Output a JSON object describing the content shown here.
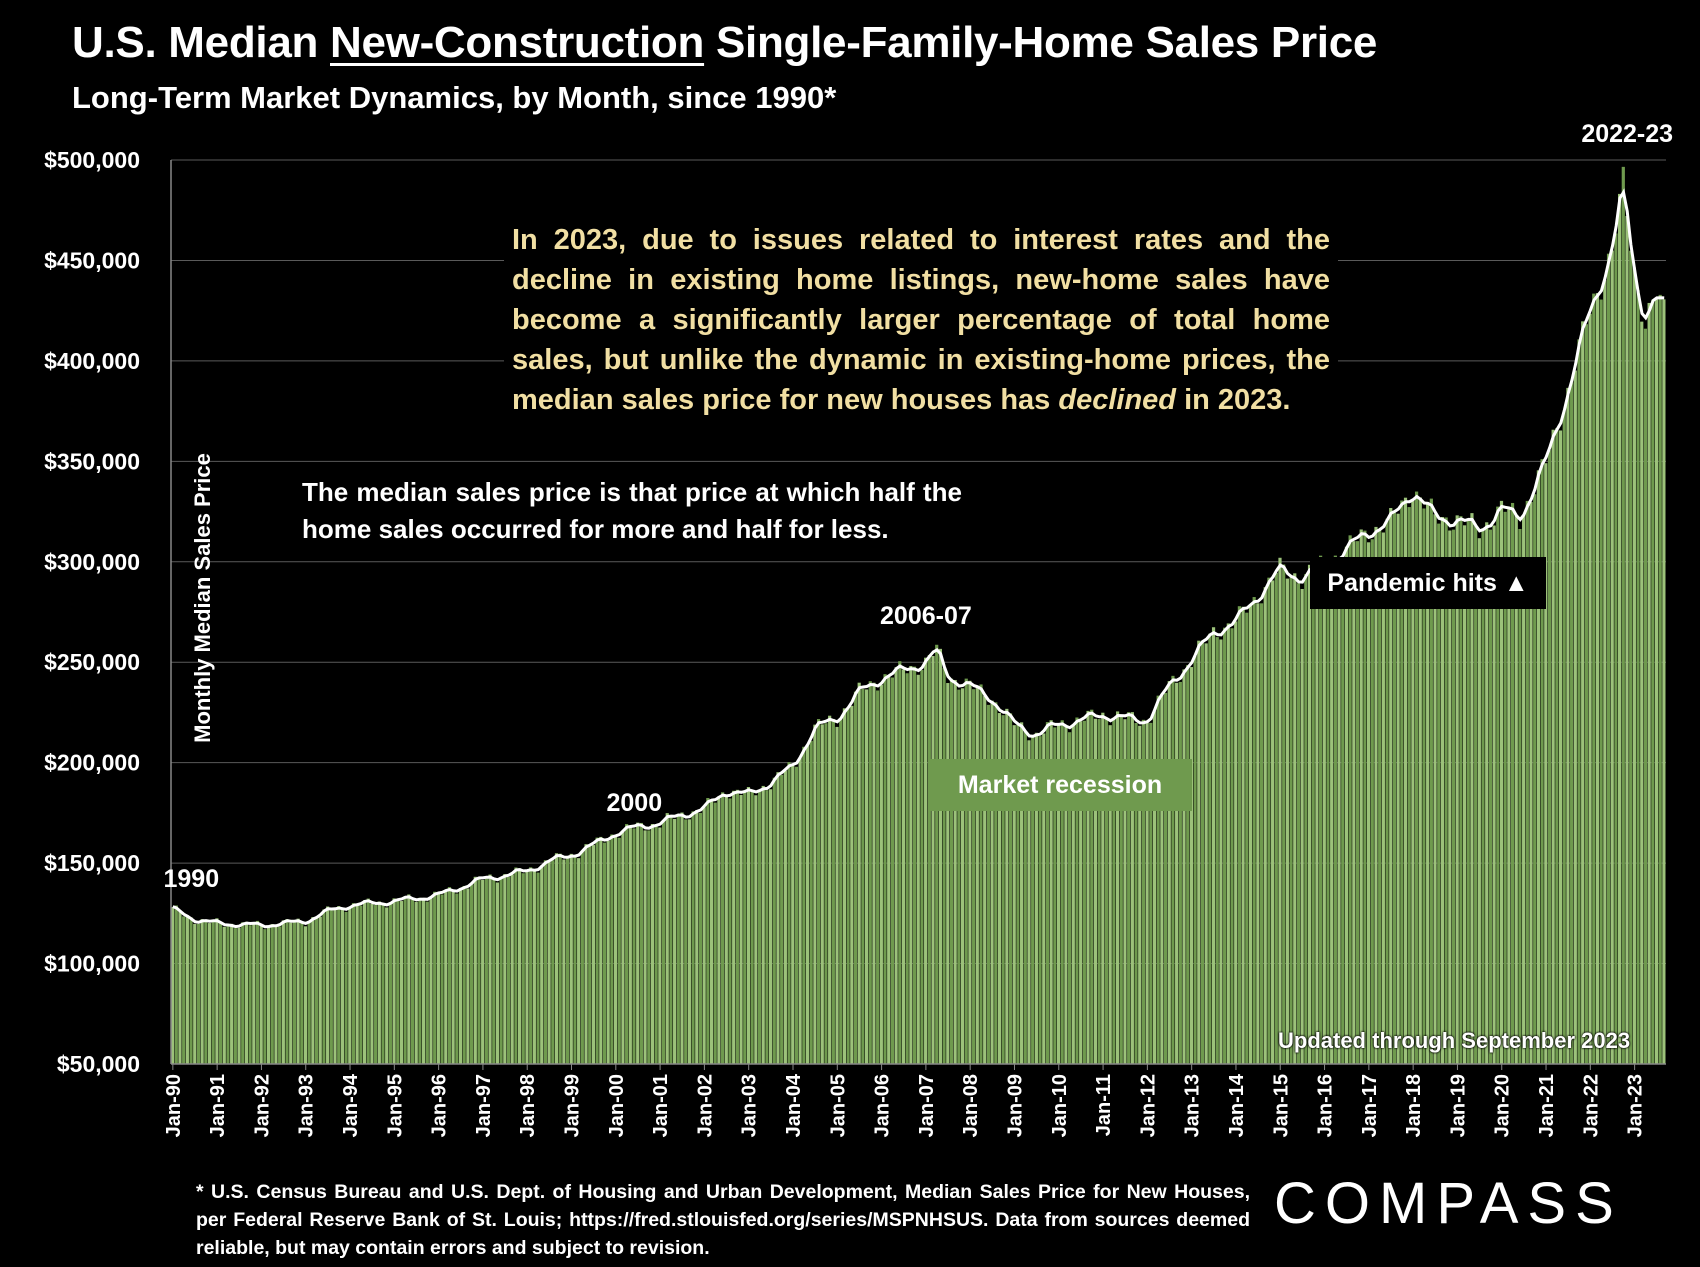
{
  "title": {
    "prefix": "U.S. Median ",
    "underlined": "New-Construction",
    "suffix": " Single-Family-Home Sales Price"
  },
  "subtitle": "Long-Term Market Dynamics, by Month, since 1990*",
  "note_yellow_1": "In 2023, due to issues related to interest rates and the decline in existing home listings, new-home sales have become a significantly larger percentage of total home sales, but unlike the dynamic in existing-home prices, the median sales price for new houses has ",
  "note_yellow_em": "declined",
  "note_yellow_2": " in 2023.",
  "note_white": "The median sales price is that price at which half the home sales occurred for more and half for less.",
  "badges": {
    "pandemic": "Pandemic hits ▲",
    "recession": "Market recession"
  },
  "updated": "Updated through September 2023",
  "footnote": "* U.S. Census Bureau and U.S. Dept. of Housing and Urban Development, Median Sales Price for New Houses, per Federal Reserve Bank of St. Louis; https://fred.stlouisfed.org/series/MSPNHSUS. Data from sources deemed reliable, but may contain errors and subject to revision.",
  "logo": "COMPASS",
  "colors": {
    "bar": "#6f9a4e",
    "bar_light": "#9cc27a",
    "line": "#ffffff",
    "note_yellow": "#f1dfa3",
    "grid": "#5a5a5a"
  },
  "chart_data": {
    "type": "bar",
    "title": "U.S. Median New-Construction Single-Family-Home Sales Price",
    "ylabel": "Monthly Median Sales Price",
    "xlabel": "",
    "ylim": [
      50000,
      500000
    ],
    "yticks": [
      50000,
      100000,
      150000,
      200000,
      250000,
      300000,
      350000,
      400000,
      450000,
      500000
    ],
    "ytick_labels": [
      "$50,000",
      "$100,000",
      "$150,000",
      "$200,000",
      "$250,000",
      "$300,000",
      "$350,000",
      "$400,000",
      "$450,000",
      "$500,000"
    ],
    "xtick_labels": [
      "Jan-90",
      "Jan-91",
      "Jan-92",
      "Jan-93",
      "Jan-94",
      "Jan-95",
      "Jan-96",
      "Jan-97",
      "Jan-98",
      "Jan-99",
      "Jan-00",
      "Jan-01",
      "Jan-02",
      "Jan-03",
      "Jan-04",
      "Jan-05",
      "Jan-06",
      "Jan-07",
      "Jan-08",
      "Jan-09",
      "Jan-10",
      "Jan-11",
      "Jan-12",
      "Jan-13",
      "Jan-14",
      "Jan-15",
      "Jan-16",
      "Jan-17",
      "Jan-18",
      "Jan-19",
      "Jan-20",
      "Jan-21",
      "Jan-22",
      "Jan-23"
    ],
    "start": "1990-01",
    "end": "2023-09",
    "anchors": [
      [
        "1990-01",
        127000
      ],
      [
        "1990-07",
        122000
      ],
      [
        "1991-01",
        120000
      ],
      [
        "1992-01",
        119000
      ],
      [
        "1993-01",
        121000
      ],
      [
        "1993-07",
        126000
      ],
      [
        "1994-01",
        129000
      ],
      [
        "1995-01",
        131000
      ],
      [
        "1996-01",
        134000
      ],
      [
        "1997-01",
        142000
      ],
      [
        "1998-01",
        146000
      ],
      [
        "1998-07",
        151000
      ],
      [
        "1999-01",
        154000
      ],
      [
        "1999-07",
        159000
      ],
      [
        "2000-01",
        165000
      ],
      [
        "2000-07",
        168000
      ],
      [
        "2001-01",
        170000
      ],
      [
        "2001-07",
        174000
      ],
      [
        "2002-01",
        177000
      ],
      [
        "2002-07",
        186000
      ],
      [
        "2003-01",
        184000
      ],
      [
        "2003-07",
        190000
      ],
      [
        "2004-01",
        198000
      ],
      [
        "2004-07",
        217000
      ],
      [
        "2005-01",
        222000
      ],
      [
        "2005-07",
        235000
      ],
      [
        "2006-01",
        242000
      ],
      [
        "2006-07",
        246000
      ],
      [
        "2007-01",
        250000
      ],
      [
        "2007-04",
        256000
      ],
      [
        "2007-07",
        243000
      ],
      [
        "2008-01",
        238000
      ],
      [
        "2008-07",
        232000
      ],
      [
        "2009-01",
        219000
      ],
      [
        "2009-07",
        214000
      ],
      [
        "2010-01",
        219000
      ],
      [
        "2010-07",
        221000
      ],
      [
        "2011-01",
        224000
      ],
      [
        "2011-07",
        222000
      ],
      [
        "2012-01",
        221000
      ],
      [
        "2012-07",
        238000
      ],
      [
        "2013-01",
        251000
      ],
      [
        "2013-07",
        265000
      ],
      [
        "2014-01",
        270000
      ],
      [
        "2014-07",
        283000
      ],
      [
        "2015-01",
        296000
      ],
      [
        "2015-07",
        292000
      ],
      [
        "2016-01",
        299000
      ],
      [
        "2016-07",
        306000
      ],
      [
        "2017-01",
        315000
      ],
      [
        "2017-07",
        320000
      ],
      [
        "2018-01",
        336000
      ],
      [
        "2018-07",
        322000
      ],
      [
        "2019-01",
        321000
      ],
      [
        "2019-07",
        316000
      ],
      [
        "2020-01",
        326000
      ],
      [
        "2020-06",
        322000
      ],
      [
        "2021-01",
        349000
      ],
      [
        "2021-07",
        385000
      ],
      [
        "2022-01",
        425000
      ],
      [
        "2022-07",
        455000
      ],
      [
        "2022-10",
        487000
      ],
      [
        "2023-01",
        445000
      ],
      [
        "2023-04",
        420000
      ],
      [
        "2023-07",
        432000
      ],
      [
        "2023-09",
        423000
      ]
    ],
    "annotations": [
      {
        "label": "1990",
        "date": "1990-06",
        "value": 138000
      },
      {
        "label": "2000",
        "date": "2000-06",
        "value": 176000
      },
      {
        "label": "2006-07",
        "date": "2007-01",
        "value": 269000
      },
      {
        "label": "2022-23",
        "date": "2022-11",
        "value": 509000
      }
    ]
  }
}
